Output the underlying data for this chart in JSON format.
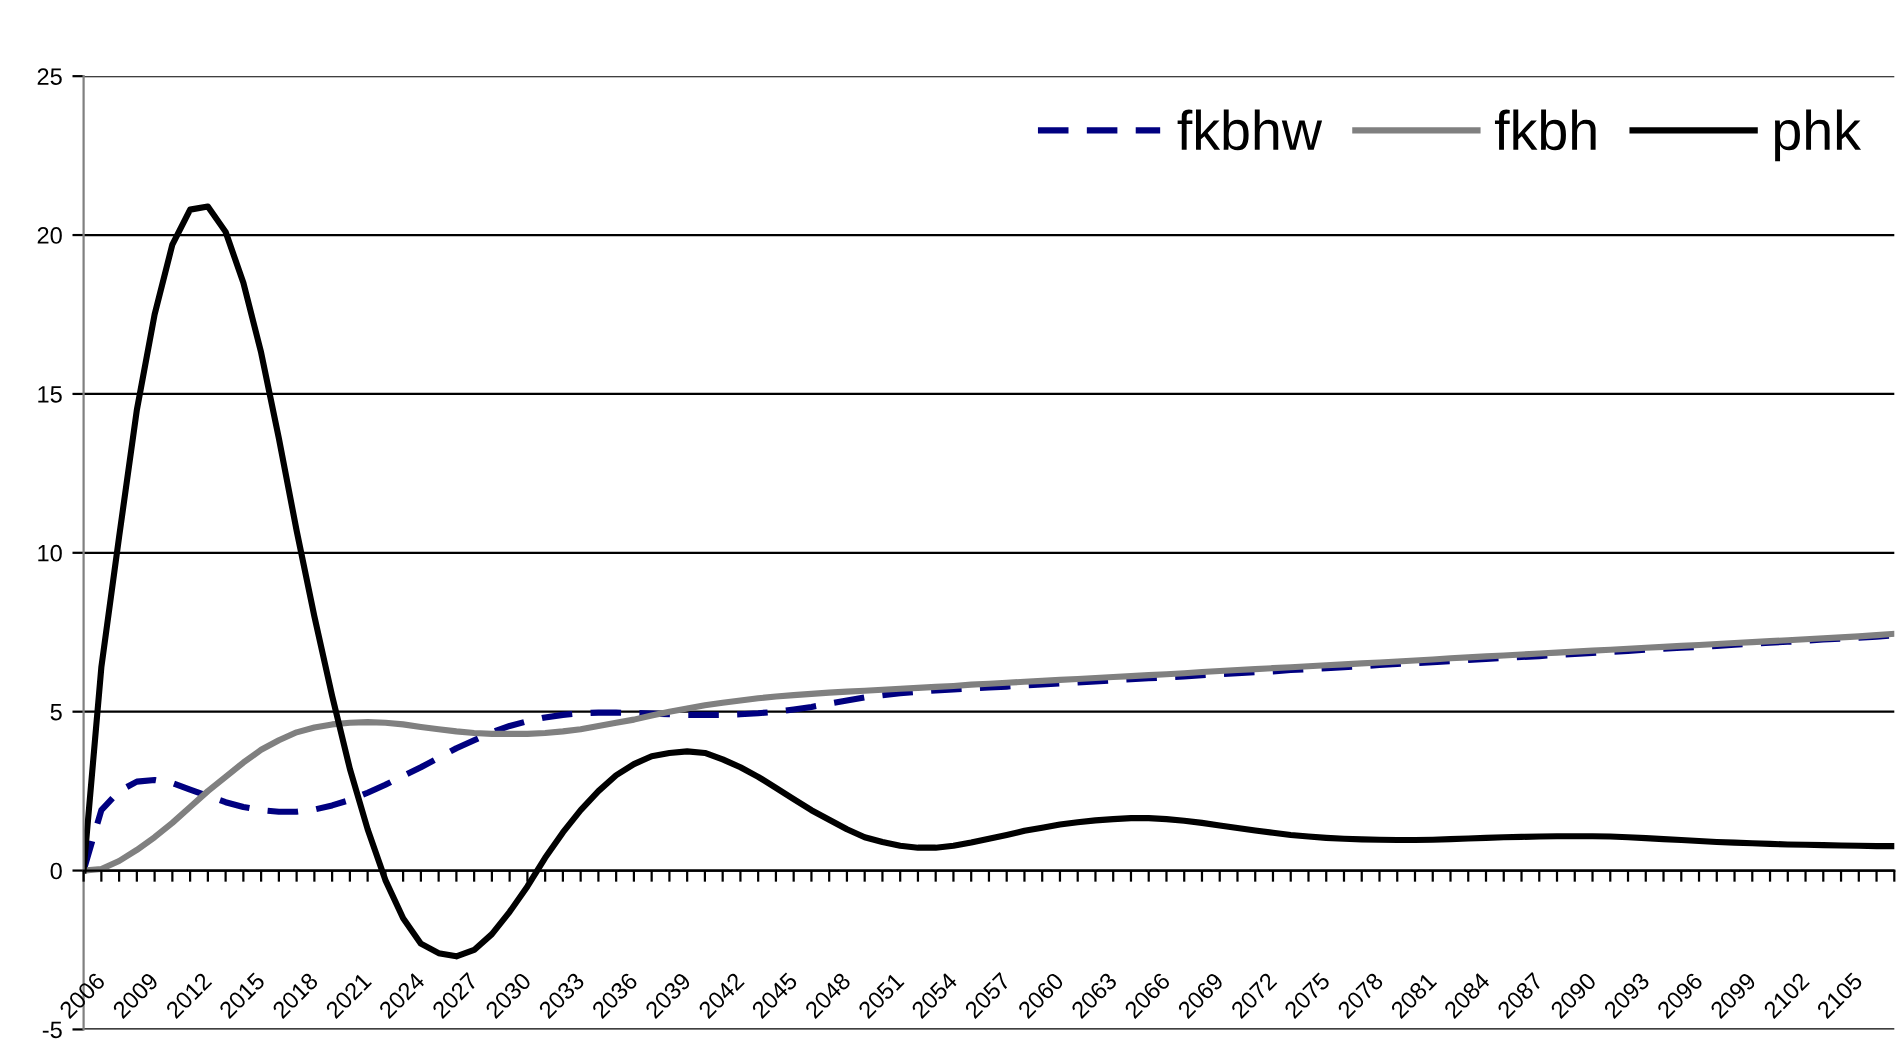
{
  "chart_data": {
    "type": "line",
    "categories": [
      "2006",
      null,
      null,
      "2009",
      null,
      null,
      "2012",
      null,
      null,
      "2015",
      null,
      null,
      "2018",
      null,
      null,
      "2021",
      null,
      null,
      "2024",
      null,
      null,
      "2027",
      null,
      null,
      "2030",
      null,
      null,
      "2033",
      null,
      null,
      "2036",
      null,
      null,
      "2039",
      null,
      null,
      "2042",
      null,
      null,
      "2045",
      null,
      null,
      "2048",
      null,
      null,
      "2051",
      null,
      null,
      "2054",
      null,
      null,
      "2057",
      null,
      null,
      "2060",
      null,
      null,
      "2063",
      null,
      null,
      "2066",
      null,
      null,
      "2069",
      null,
      null,
      "2072",
      null,
      null,
      "2075",
      null,
      null,
      "2078",
      null,
      null,
      "2081",
      null,
      null,
      "2084",
      null,
      null,
      "2087",
      null,
      null,
      "2090",
      null,
      null,
      "2093",
      null,
      null,
      "2096",
      null,
      null,
      "2099",
      null,
      null,
      "2102",
      null,
      null,
      "2105",
      null,
      null,
      null
    ],
    "series": [
      {
        "name": "fkbhw",
        "color": "#000080",
        "line_style": "dashed",
        "values": [
          0,
          1.9,
          2.5,
          2.8,
          2.85,
          2.75,
          2.55,
          2.35,
          2.15,
          2.0,
          1.9,
          1.85,
          1.85,
          1.92,
          2.05,
          2.22,
          2.45,
          2.7,
          2.98,
          3.25,
          3.55,
          3.85,
          4.1,
          4.35,
          4.55,
          4.7,
          4.82,
          4.9,
          4.95,
          4.97,
          4.97,
          4.96,
          4.94,
          4.92,
          4.9,
          4.9,
          4.9,
          4.92,
          4.95,
          5.0,
          5.07,
          5.15,
          5.25,
          5.35,
          5.45,
          5.52,
          5.58,
          5.63,
          5.67,
          5.7,
          5.73,
          5.76,
          5.79,
          5.83,
          5.86,
          5.89,
          5.92,
          5.95,
          5.99,
          6.02,
          6.05,
          6.08,
          6.11,
          6.15,
          6.18,
          6.21,
          6.24,
          6.27,
          6.31,
          6.34,
          6.37,
          6.4,
          6.43,
          6.47,
          6.5,
          6.53,
          6.56,
          6.59,
          6.63,
          6.66,
          6.69,
          6.72,
          6.75,
          6.79,
          6.82,
          6.85,
          6.88,
          6.91,
          6.95,
          6.98,
          7.01,
          7.04,
          7.07,
          7.11,
          7.14,
          7.17,
          7.2,
          7.23,
          7.27,
          7.3,
          7.33,
          7.36,
          7.4
        ]
      },
      {
        "name": "fkbh",
        "color": "#808080",
        "line_style": "solid",
        "values": [
          0,
          0.05,
          0.3,
          0.65,
          1.05,
          1.5,
          2.0,
          2.5,
          2.95,
          3.4,
          3.8,
          4.1,
          4.35,
          4.5,
          4.6,
          4.65,
          4.67,
          4.65,
          4.6,
          4.52,
          4.45,
          4.38,
          4.33,
          4.3,
          4.3,
          4.3,
          4.33,
          4.38,
          4.45,
          4.55,
          4.65,
          4.75,
          4.88,
          5.0,
          5.1,
          5.2,
          5.28,
          5.35,
          5.42,
          5.48,
          5.52,
          5.56,
          5.6,
          5.63,
          5.66,
          5.69,
          5.72,
          5.75,
          5.78,
          5.81,
          5.85,
          5.88,
          5.91,
          5.94,
          5.97,
          6.0,
          6.03,
          6.06,
          6.09,
          6.12,
          6.15,
          6.18,
          6.21,
          6.25,
          6.28,
          6.31,
          6.34,
          6.37,
          6.4,
          6.43,
          6.46,
          6.49,
          6.52,
          6.55,
          6.58,
          6.61,
          6.64,
          6.68,
          6.71,
          6.74,
          6.77,
          6.8,
          6.83,
          6.86,
          6.89,
          6.92,
          6.95,
          6.98,
          7.01,
          7.04,
          7.07,
          7.1,
          7.13,
          7.16,
          7.19,
          7.22,
          7.25,
          7.28,
          7.31,
          7.34,
          7.37,
          7.41,
          7.45
        ]
      },
      {
        "name": "phk",
        "color": "#000000",
        "line_style": "solid",
        "values": [
          0,
          6.4,
          10.5,
          14.5,
          17.5,
          19.7,
          20.8,
          20.9,
          20.1,
          18.5,
          16.3,
          13.6,
          10.7,
          8.0,
          5.5,
          3.2,
          1.3,
          -0.3,
          -1.5,
          -2.3,
          -2.6,
          -2.7,
          -2.5,
          -2.0,
          -1.3,
          -0.5,
          0.4,
          1.2,
          1.9,
          2.5,
          3.0,
          3.35,
          3.6,
          3.7,
          3.75,
          3.7,
          3.5,
          3.25,
          2.95,
          2.6,
          2.25,
          1.9,
          1.6,
          1.3,
          1.05,
          0.9,
          0.78,
          0.72,
          0.72,
          0.78,
          0.88,
          1.0,
          1.12,
          1.25,
          1.35,
          1.45,
          1.52,
          1.58,
          1.62,
          1.65,
          1.65,
          1.62,
          1.57,
          1.5,
          1.42,
          1.34,
          1.26,
          1.19,
          1.12,
          1.07,
          1.03,
          1.0,
          0.98,
          0.97,
          0.96,
          0.96,
          0.97,
          0.99,
          1.01,
          1.03,
          1.05,
          1.06,
          1.07,
          1.08,
          1.08,
          1.08,
          1.07,
          1.05,
          1.02,
          0.99,
          0.96,
          0.93,
          0.9,
          0.88,
          0.86,
          0.84,
          0.82,
          0.81,
          0.8,
          0.79,
          0.78,
          0.77,
          0.77
        ]
      }
    ],
    "ylim": [
      -5,
      25
    ],
    "yticks": [
      -5,
      0,
      5,
      10,
      15,
      20,
      25
    ],
    "grid": "y",
    "legend": "top right",
    "marker": "none"
  }
}
